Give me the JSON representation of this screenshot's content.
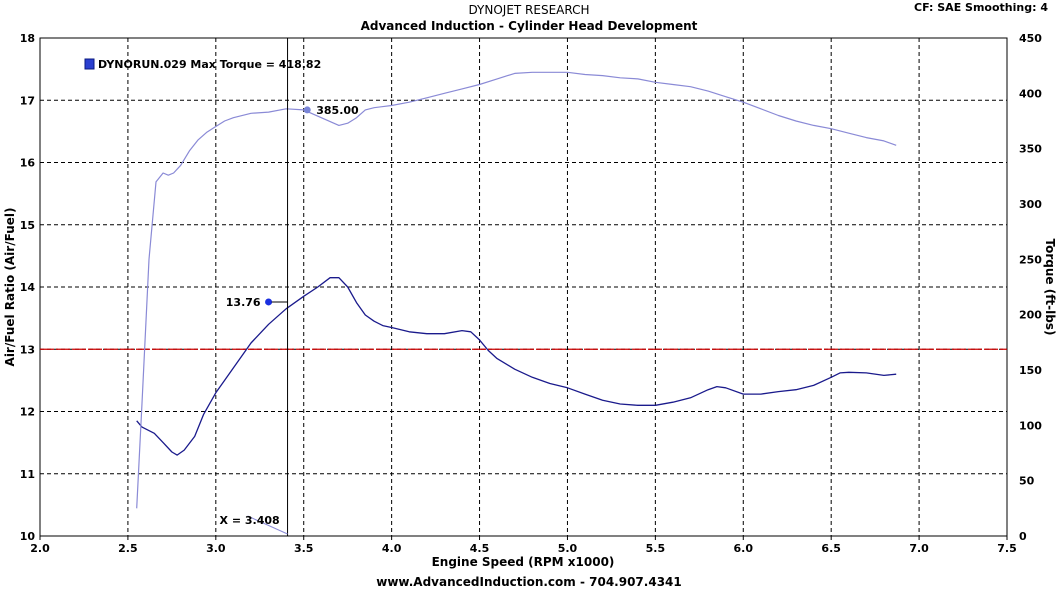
{
  "header": {
    "title": "DYNOJET RESEARCH",
    "subtitle": "Advanced Induction - Cylinder Head Development",
    "settings": "CF: SAE  Smoothing: 4"
  },
  "footer": {
    "text": "www.AdvancedInduction.com  -  704.907.4341"
  },
  "colors": {
    "afr_line": "#1a1a8c",
    "torque_line": "#8a8ad6",
    "reference_line": "#cc0000",
    "cursor_line": "#000000",
    "legend_swatch": "#2a3fd0"
  },
  "chart_data": {
    "type": "line",
    "title": "DYNOJET RESEARCH",
    "subtitle": "Advanced Induction - Cylinder Head Development",
    "xlabel": "Engine Speed (RPM x1000)",
    "ylabel_left": "Air/Fuel Ratio (Air/Fuel)",
    "ylabel_right": "Torque (ft-lbs)",
    "xlim": [
      2.0,
      7.5
    ],
    "ylim_left": [
      10,
      18
    ],
    "ylim_right": [
      0,
      450
    ],
    "x_ticks": [
      "2.0",
      "2.5",
      "3.0",
      "3.5",
      "4.0",
      "4.5",
      "5.0",
      "5.5",
      "6.0",
      "6.5",
      "7.0",
      "7.5"
    ],
    "y_left_ticks": [
      "10",
      "11",
      "12",
      "13",
      "14",
      "15",
      "16",
      "17",
      "18"
    ],
    "y_right_ticks": [
      "0",
      "50",
      "100",
      "150",
      "200",
      "250",
      "300",
      "350",
      "400",
      "450"
    ],
    "grid": true,
    "legend": {
      "label": "DYNORUN.029 Max Torque = 418.82",
      "position": "top-left"
    },
    "reference_line": {
      "axis": "left",
      "value": 13.0
    },
    "cursor": {
      "x": 3.408,
      "label": "X = 3.408"
    },
    "markers": [
      {
        "series": "afr",
        "x": 3.3,
        "value": 13.76,
        "label": "13.76"
      },
      {
        "series": "torque",
        "x": 3.52,
        "value": 385.0,
        "label": "385.00"
      }
    ],
    "series": [
      {
        "key": "afr",
        "axis": "left",
        "x": [
          2.55,
          2.58,
          2.65,
          2.7,
          2.75,
          2.78,
          2.82,
          2.88,
          2.93,
          3.0,
          3.1,
          3.2,
          3.3,
          3.4,
          3.5,
          3.58,
          3.65,
          3.7,
          3.75,
          3.8,
          3.85,
          3.9,
          3.95,
          4.0,
          4.1,
          4.2,
          4.3,
          4.4,
          4.45,
          4.5,
          4.55,
          4.6,
          4.7,
          4.8,
          4.9,
          5.0,
          5.1,
          5.2,
          5.3,
          5.4,
          5.5,
          5.6,
          5.7,
          5.8,
          5.85,
          5.9,
          6.0,
          6.1,
          6.2,
          6.3,
          6.4,
          6.5,
          6.55,
          6.6,
          6.7,
          6.8,
          6.87
        ],
        "values": [
          11.85,
          11.75,
          11.65,
          11.5,
          11.35,
          11.3,
          11.38,
          11.6,
          11.95,
          12.3,
          12.7,
          13.1,
          13.4,
          13.65,
          13.85,
          14.0,
          14.15,
          14.15,
          14.0,
          13.75,
          13.55,
          13.45,
          13.38,
          13.35,
          13.28,
          13.25,
          13.25,
          13.3,
          13.28,
          13.15,
          12.98,
          12.85,
          12.68,
          12.55,
          12.45,
          12.38,
          12.28,
          12.18,
          12.12,
          12.1,
          12.1,
          12.15,
          12.22,
          12.35,
          12.4,
          12.38,
          12.28,
          12.28,
          12.32,
          12.35,
          12.42,
          12.55,
          12.62,
          12.63,
          12.62,
          12.58,
          12.6
        ]
      },
      {
        "key": "torque",
        "axis": "right",
        "x": [
          2.55,
          2.58,
          2.62,
          2.66,
          2.7,
          2.73,
          2.76,
          2.8,
          2.85,
          2.9,
          2.95,
          3.0,
          3.05,
          3.1,
          3.2,
          3.3,
          3.4,
          3.5,
          3.6,
          3.7,
          3.75,
          3.8,
          3.85,
          3.9,
          4.0,
          4.1,
          4.2,
          4.3,
          4.4,
          4.5,
          4.6,
          4.7,
          4.8,
          4.9,
          5.0,
          5.1,
          5.2,
          5.3,
          5.4,
          5.5,
          5.6,
          5.7,
          5.8,
          5.9,
          6.0,
          6.1,
          6.2,
          6.3,
          6.4,
          6.5,
          6.6,
          6.7,
          6.8,
          6.87
        ],
        "values": [
          25,
          120,
          250,
          320,
          328,
          326,
          328,
          335,
          348,
          358,
          365,
          370,
          375,
          378,
          382,
          383,
          386,
          385,
          378,
          371,
          373,
          378,
          385,
          387,
          389,
          392,
          396,
          400,
          404,
          408,
          413,
          418,
          419,
          419,
          419,
          417,
          416,
          414,
          413,
          410,
          408,
          406,
          402,
          397,
          392,
          386,
          380,
          375,
          371,
          368,
          364,
          360,
          357,
          353
        ]
      }
    ]
  }
}
